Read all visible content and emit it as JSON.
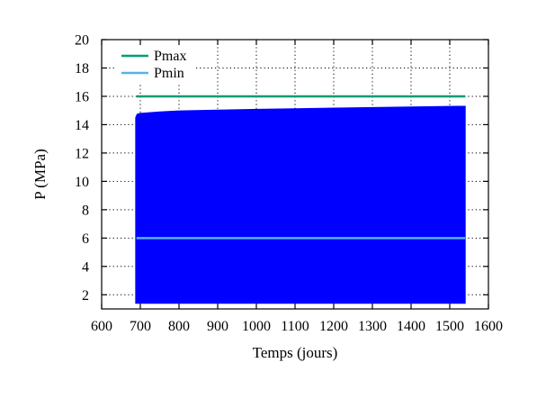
{
  "chart_data": {
    "type": "area",
    "title": "",
    "xlabel": "Temps (jours)",
    "ylabel": "P (MPa)",
    "xlim": [
      600,
      1600
    ],
    "ylim": [
      1,
      20
    ],
    "xticks": [
      600,
      700,
      800,
      900,
      1000,
      1100,
      1200,
      1300,
      1400,
      1500,
      1600
    ],
    "yticks": [
      2,
      4,
      6,
      8,
      10,
      12,
      14,
      16,
      18,
      20
    ],
    "grid": true,
    "legend_position": "top-left",
    "series": [
      {
        "name": "Pmax",
        "type": "line",
        "color": "#009e73",
        "x": [
          690,
          1540
        ],
        "y": [
          16.0,
          16.0
        ]
      },
      {
        "name": "Pmin",
        "type": "line",
        "color": "#56b4e9",
        "x": [
          690,
          1540
        ],
        "y": [
          6.0,
          6.0
        ]
      },
      {
        "type": "band",
        "color": "#0000ff",
        "x": [
          688,
          692,
          700,
          750,
          800,
          900,
          1000,
          1100,
          1200,
          1300,
          1400,
          1500,
          1540
        ],
        "upper": [
          14.5,
          14.75,
          14.8,
          14.9,
          14.97,
          15.03,
          15.08,
          15.12,
          15.17,
          15.21,
          15.25,
          15.29,
          15.3
        ],
        "lower": [
          1.4,
          1.4,
          1.4,
          1.4,
          1.4,
          1.4,
          1.4,
          1.4,
          1.4,
          1.4,
          1.4,
          1.4,
          1.4
        ]
      }
    ]
  }
}
